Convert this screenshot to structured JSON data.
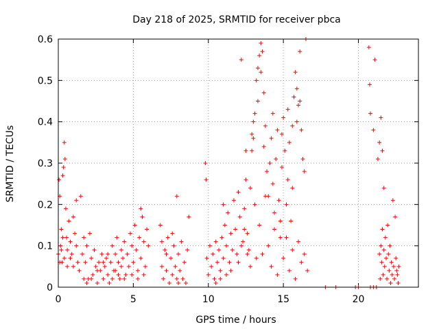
{
  "chart_data": {
    "type": "scatter",
    "title": "Day 218 of 2025, SRMTID for receiver pbca",
    "xlabel": "GPS time / hours",
    "ylabel": "SRMTID / TECUs",
    "xlim": [
      0,
      24
    ],
    "ylim": [
      0,
      0.6
    ],
    "x_ticks": [
      0,
      5,
      10,
      15,
      20
    ],
    "y_ticks": [
      0,
      0.1,
      0.2,
      0.3,
      0.4,
      0.5,
      0.6
    ],
    "x_tick_labels": [
      "0",
      "5",
      "10",
      "15",
      "20"
    ],
    "y_tick_labels": [
      "0",
      "0.1",
      "0.2",
      "0.3",
      "0.4",
      "0.5",
      "0.6"
    ],
    "grid": true,
    "marker": "+",
    "color": "#ff0000",
    "series": [
      {
        "name": "SRMTID",
        "points": [
          [
            0.0,
            0.08
          ],
          [
            0.05,
            0.26
          ],
          [
            0.1,
            0.22
          ],
          [
            0.15,
            0.1
          ],
          [
            0.2,
            0.14
          ],
          [
            0.25,
            0.06
          ],
          [
            0.3,
            0.27
          ],
          [
            0.35,
            0.29
          ],
          [
            0.4,
            0.35
          ],
          [
            0.45,
            0.31
          ],
          [
            0.5,
            0.19
          ],
          [
            0.55,
            0.12
          ],
          [
            0.6,
            0.09
          ],
          [
            0.7,
            0.16
          ],
          [
            0.8,
            0.11
          ],
          [
            0.9,
            0.08
          ],
          [
            1.0,
            0.17
          ],
          [
            1.1,
            0.13
          ],
          [
            1.2,
            0.21
          ],
          [
            1.3,
            0.06
          ],
          [
            0.1,
            0.06
          ],
          [
            0.2,
            0.09
          ],
          [
            0.3,
            0.12
          ],
          [
            0.4,
            0.07
          ],
          [
            0.6,
            0.05
          ],
          [
            0.8,
            0.07
          ],
          [
            1.0,
            0.05
          ],
          [
            1.2,
            0.1
          ],
          [
            1.4,
            0.04
          ],
          [
            1.5,
            0.22
          ],
          [
            1.6,
            0.08
          ],
          [
            1.7,
            0.12
          ],
          [
            1.8,
            0.06
          ],
          [
            1.9,
            0.1
          ],
          [
            2.0,
            0.02
          ],
          [
            2.1,
            0.13
          ],
          [
            2.2,
            0.07
          ],
          [
            2.3,
            0.03
          ],
          [
            2.4,
            0.09
          ],
          [
            2.5,
            0.05
          ],
          [
            2.6,
            0.01
          ],
          [
            2.7,
            0.06
          ],
          [
            2.8,
            0.04
          ],
          [
            2.9,
            0.08
          ],
          [
            3.0,
            0.02
          ],
          [
            3.1,
            0.05
          ],
          [
            3.2,
            0.07
          ],
          [
            3.3,
            0.03
          ],
          [
            3.4,
            0.01
          ],
          [
            3.5,
            0.06
          ],
          [
            1.7,
            0.02
          ],
          [
            1.9,
            0.01
          ],
          [
            2.2,
            0.02
          ],
          [
            2.6,
            0.04
          ],
          [
            3.0,
            0.06
          ],
          [
            3.3,
            0.08
          ],
          [
            3.6,
            0.02
          ],
          [
            3.8,
            0.04
          ],
          [
            4.0,
            0.03
          ],
          [
            4.2,
            0.05
          ],
          [
            3.6,
            0.1
          ],
          [
            3.7,
            0.04
          ],
          [
            3.8,
            0.08
          ],
          [
            3.9,
            0.12
          ],
          [
            4.0,
            0.06
          ],
          [
            4.1,
            0.02
          ],
          [
            4.2,
            0.09
          ],
          [
            4.3,
            0.07
          ],
          [
            4.4,
            0.11
          ],
          [
            4.5,
            0.03
          ],
          [
            4.6,
            0.08
          ],
          [
            4.7,
            0.05
          ],
          [
            4.8,
            0.13
          ],
          [
            4.9,
            0.1
          ],
          [
            5.0,
            0.06
          ],
          [
            5.1,
            0.15
          ],
          [
            5.2,
            0.09
          ],
          [
            5.3,
            0.04
          ],
          [
            5.4,
            0.12
          ],
          [
            5.5,
            0.07
          ],
          [
            5.6,
            0.17
          ],
          [
            5.7,
            0.11
          ],
          [
            5.8,
            0.05
          ],
          [
            5.9,
            0.14
          ],
          [
            6.0,
            0.1
          ],
          [
            5.5,
            0.19
          ],
          [
            5.3,
            0.02
          ],
          [
            4.9,
            0.03
          ],
          [
            4.4,
            0.02
          ],
          [
            5.7,
            0.03
          ],
          [
            6.8,
            0.15
          ],
          [
            6.9,
            0.05
          ],
          [
            7.0,
            0.02
          ],
          [
            7.1,
            0.09
          ],
          [
            7.2,
            0.04
          ],
          [
            7.3,
            0.12
          ],
          [
            7.4,
            0.01
          ],
          [
            7.5,
            0.07
          ],
          [
            7.6,
            0.03
          ],
          [
            7.7,
            0.1
          ],
          [
            7.8,
            0.05
          ],
          [
            7.9,
            0.02
          ],
          [
            8.0,
            0.08
          ],
          [
            8.1,
            0.04
          ],
          [
            8.2,
            0.11
          ],
          [
            8.3,
            0.02
          ],
          [
            8.4,
            0.06
          ],
          [
            8.5,
            0.01
          ],
          [
            8.6,
            0.09
          ],
          [
            8.7,
            0.17
          ],
          [
            7.9,
            0.22
          ],
          [
            8.0,
            0.01
          ],
          [
            7.2,
            0.08
          ],
          [
            6.9,
            0.11
          ],
          [
            7.6,
            0.13
          ],
          [
            9.8,
            0.3
          ],
          [
            9.85,
            0.26
          ],
          [
            9.9,
            0.07
          ],
          [
            10.0,
            0.03
          ],
          [
            10.1,
            0.1
          ],
          [
            10.2,
            0.05
          ],
          [
            10.3,
            0.08
          ],
          [
            10.4,
            0.02
          ],
          [
            10.5,
            0.11
          ],
          [
            10.6,
            0.06
          ],
          [
            10.7,
            0.09
          ],
          [
            10.8,
            0.04
          ],
          [
            10.9,
            0.12
          ],
          [
            11.0,
            0.07
          ],
          [
            11.1,
            0.15
          ],
          [
            11.2,
            0.1
          ],
          [
            11.3,
            0.18
          ],
          [
            11.4,
            0.06
          ],
          [
            11.5,
            0.13
          ],
          [
            11.6,
            0.09
          ],
          [
            11.7,
            0.21
          ],
          [
            11.8,
            0.14
          ],
          [
            11.9,
            0.08
          ],
          [
            12.0,
            0.23
          ],
          [
            12.1,
            0.17
          ],
          [
            12.2,
            0.55
          ],
          [
            12.3,
            0.11
          ],
          [
            12.4,
            0.19
          ],
          [
            12.5,
            0.26
          ],
          [
            12.6,
            0.13
          ],
          [
            12.7,
            0.09
          ],
          [
            12.8,
            0.24
          ],
          [
            12.9,
            0.33
          ],
          [
            13.0,
            0.36
          ],
          [
            13.1,
            0.42
          ],
          [
            13.2,
            0.5
          ],
          [
            13.3,
            0.53
          ],
          [
            13.4,
            0.56
          ],
          [
            13.5,
            0.59
          ],
          [
            13.6,
            0.57
          ],
          [
            13.7,
            0.47
          ],
          [
            13.8,
            0.39
          ],
          [
            13.9,
            0.28
          ],
          [
            14.0,
            0.22
          ],
          [
            14.1,
            0.3
          ],
          [
            14.2,
            0.36
          ],
          [
            14.3,
            0.25
          ],
          [
            14.4,
            0.18
          ],
          [
            14.5,
            0.31
          ],
          [
            14.6,
            0.38
          ],
          [
            14.7,
            0.21
          ],
          [
            14.8,
            0.12
          ],
          [
            14.9,
            0.29
          ],
          [
            15.0,
            0.41
          ],
          [
            15.1,
            0.33
          ],
          [
            15.2,
            0.2
          ],
          [
            15.3,
            0.26
          ],
          [
            15.4,
            0.35
          ],
          [
            15.5,
            0.16
          ],
          [
            15.6,
            0.24
          ],
          [
            15.7,
            0.46
          ],
          [
            15.8,
            0.52
          ],
          [
            15.9,
            0.48
          ],
          [
            16.0,
            0.44
          ],
          [
            16.1,
            0.57
          ],
          [
            16.2,
            0.38
          ],
          [
            16.3,
            0.31
          ],
          [
            16.4,
            0.28
          ],
          [
            16.5,
            0.6
          ],
          [
            16.6,
            0.04
          ],
          [
            12.9,
            0.37
          ],
          [
            13.0,
            0.4
          ],
          [
            13.1,
            0.2
          ],
          [
            13.2,
            0.07
          ],
          [
            13.4,
            0.15
          ],
          [
            13.6,
            0.08
          ],
          [
            13.8,
            0.22
          ],
          [
            14.0,
            0.1
          ],
          [
            14.2,
            0.05
          ],
          [
            14.4,
            0.14
          ],
          [
            14.6,
            0.03
          ],
          [
            14.8,
            0.16
          ],
          [
            15.0,
            0.07
          ],
          [
            15.2,
            0.12
          ],
          [
            15.4,
            0.04
          ],
          [
            15.6,
            0.09
          ],
          [
            15.8,
            0.02
          ],
          [
            16.0,
            0.11
          ],
          [
            16.2,
            0.06
          ],
          [
            16.4,
            0.08
          ],
          [
            12.0,
            0.06
          ],
          [
            12.2,
            0.1
          ],
          [
            12.4,
            0.14
          ],
          [
            12.6,
            0.08
          ],
          [
            12.8,
            0.05
          ],
          [
            11.2,
            0.03
          ],
          [
            11.5,
            0.04
          ],
          [
            10.5,
            0.01
          ],
          [
            10.8,
            0.02
          ],
          [
            11.0,
            0.2
          ],
          [
            13.3,
            0.45
          ],
          [
            13.5,
            0.52
          ],
          [
            13.7,
            0.34
          ],
          [
            14.9,
            0.37
          ],
          [
            15.3,
            0.43
          ],
          [
            15.9,
            0.4
          ],
          [
            16.1,
            0.45
          ],
          [
            15.6,
            0.39
          ],
          [
            14.3,
            0.42
          ],
          [
            12.5,
            0.33
          ],
          [
            17.8,
            0.0
          ],
          [
            18.5,
            0.0
          ],
          [
            19.8,
            0.0
          ],
          [
            20.0,
            0.0
          ],
          [
            20.8,
            0.0
          ],
          [
            21.0,
            0.0
          ],
          [
            21.2,
            0.0
          ],
          [
            20.7,
            0.58
          ],
          [
            20.75,
            0.49
          ],
          [
            20.8,
            0.42
          ],
          [
            21.0,
            0.38
          ],
          [
            21.1,
            0.55
          ],
          [
            21.3,
            0.31
          ],
          [
            21.4,
            0.35
          ],
          [
            21.5,
            0.41
          ],
          [
            21.6,
            0.33
          ],
          [
            21.7,
            0.24
          ],
          [
            21.5,
            0.1
          ],
          [
            21.55,
            0.06
          ],
          [
            21.6,
            0.14
          ],
          [
            21.65,
            0.03
          ],
          [
            21.7,
            0.09
          ],
          [
            21.75,
            0.05
          ],
          [
            21.8,
            0.12
          ],
          [
            21.85,
            0.07
          ],
          [
            21.9,
            0.02
          ],
          [
            21.95,
            0.15
          ],
          [
            22.0,
            0.08
          ],
          [
            22.05,
            0.04
          ],
          [
            22.1,
            0.1
          ],
          [
            22.15,
            0.01
          ],
          [
            22.2,
            0.06
          ],
          [
            22.25,
            0.03
          ],
          [
            22.3,
            0.21
          ],
          [
            22.35,
            0.05
          ],
          [
            22.4,
            0.02
          ],
          [
            22.5,
            0.07
          ],
          [
            22.55,
            0.04
          ],
          [
            22.6,
            0.03
          ],
          [
            22.65,
            0.01
          ],
          [
            22.7,
            0.05
          ],
          [
            21.4,
            0.08
          ],
          [
            21.45,
            0.02
          ],
          [
            22.45,
            0.17
          ]
        ]
      }
    ]
  }
}
